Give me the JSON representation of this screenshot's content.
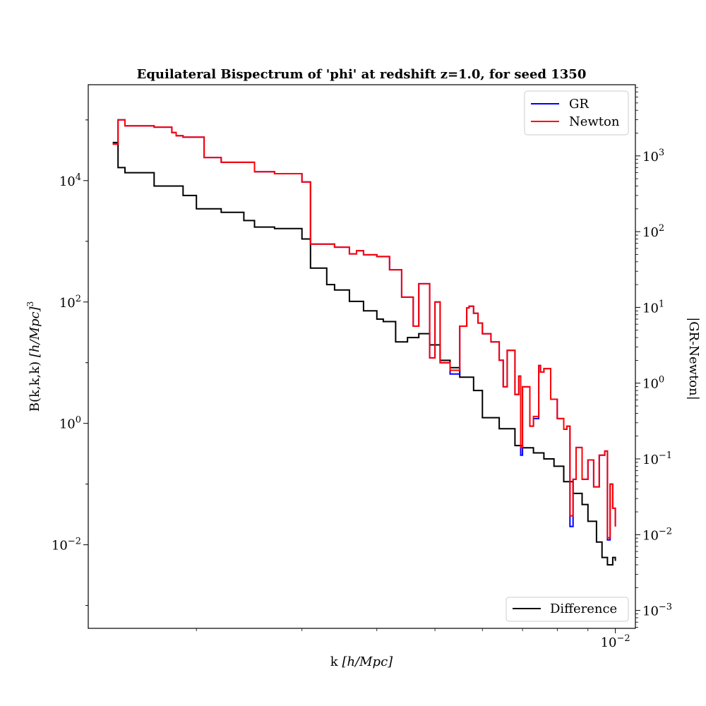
{
  "chart_data": {
    "type": "line",
    "title": "Equilateral Bispectrum of 'phi' at redshift z=1.0, for seed 1350",
    "xlabel_text": "k ",
    "xlabel_unit": "[h/Mpc]",
    "ylabel_text": "B(k,k,k) ",
    "ylabel_unit": "[h/Mpc]",
    "ylabel_exp": "3",
    "ylabel_right": "|GR-Newton|",
    "x_scale": "log",
    "y_scale": "log",
    "y_right_scale": "log",
    "xlim": [
      0.00132,
      0.0108
    ],
    "ylim": [
      0.00042,
      380000
    ],
    "y_right_lim": [
      0.00058,
      8700
    ],
    "grid": false,
    "legend_left_axis": "top-right",
    "legend_right_axis": "bottom-right",
    "x_tick_labels": [
      {
        "value": 0.01,
        "base": "10",
        "exp": "−2"
      }
    ],
    "y_tick_labels": [
      {
        "value": 0.01,
        "base": "10",
        "exp": "−2"
      },
      {
        "value": 1,
        "base": "10",
        "exp": "0"
      },
      {
        "value": 100,
        "base": "10",
        "exp": "2"
      },
      {
        "value": 10000,
        "base": "10",
        "exp": "4"
      }
    ],
    "y_right_tick_labels": [
      {
        "value": 0.001,
        "base": "10",
        "exp": "−3"
      },
      {
        "value": 0.01,
        "base": "10",
        "exp": "−2"
      },
      {
        "value": 0.1,
        "base": "10",
        "exp": "−1"
      },
      {
        "value": 1,
        "base": "10",
        "exp": "0"
      },
      {
        "value": 10,
        "base": "10",
        "exp": "1"
      },
      {
        "value": 100,
        "base": "10",
        "exp": "2"
      },
      {
        "value": 1000,
        "base": "10",
        "exp": "3"
      }
    ],
    "series": [
      {
        "name": "GR",
        "axis": "left",
        "color": "#0000ff",
        "x": [
          0.00145,
          0.00148,
          0.00152,
          0.0017,
          0.00182,
          0.00185,
          0.0019,
          0.00206,
          0.0022,
          0.0025,
          0.0027,
          0.003,
          0.0031,
          0.0034,
          0.0036,
          0.0037,
          0.0038,
          0.004,
          0.0042,
          0.0044,
          0.0046,
          0.0047,
          0.0049,
          0.005,
          0.0051,
          0.0053,
          0.0055,
          0.00565,
          0.0057,
          0.0058,
          0.0059,
          0.006,
          0.0062,
          0.0064,
          0.0065,
          0.0066,
          0.0068,
          0.0069,
          0.00695,
          0.007,
          0.0072,
          0.0073,
          0.00745,
          0.0075,
          0.0076,
          0.0078,
          0.008,
          0.0082,
          0.0083,
          0.0084,
          0.0085,
          0.0086,
          0.0088,
          0.009,
          0.0092,
          0.0094,
          0.0096,
          0.0097,
          0.0098,
          0.0099,
          0.01
        ],
        "y": [
          40000,
          100000,
          80000,
          76000,
          62000,
          55000,
          52000,
          24000,
          20000,
          14000,
          13000,
          9500,
          900,
          800,
          620,
          700,
          600,
          560,
          340,
          120,
          40,
          200,
          12,
          100,
          10,
          6.5,
          40,
          80,
          85,
          65,
          45,
          30,
          22,
          11,
          4,
          16,
          3,
          6,
          0.3,
          4,
          0.9,
          1.2,
          9,
          7,
          8,
          2.5,
          1.2,
          0.8,
          0.9,
          0.02,
          0.12,
          0.4,
          0.12,
          0.25,
          0.09,
          0.3,
          0.35,
          0.012,
          0.1,
          0.04,
          0.02
        ]
      },
      {
        "name": "Newton",
        "axis": "left",
        "color": "#ff0000",
        "x": [
          0.00145,
          0.00148,
          0.00152,
          0.0017,
          0.00182,
          0.00185,
          0.0019,
          0.00206,
          0.0022,
          0.0025,
          0.0027,
          0.003,
          0.0031,
          0.0034,
          0.0036,
          0.0037,
          0.0038,
          0.004,
          0.0042,
          0.0044,
          0.0046,
          0.0047,
          0.0049,
          0.005,
          0.0051,
          0.0053,
          0.0055,
          0.00565,
          0.0057,
          0.0058,
          0.0059,
          0.006,
          0.0062,
          0.0064,
          0.0065,
          0.0066,
          0.0068,
          0.0069,
          0.00695,
          0.007,
          0.0072,
          0.0073,
          0.00745,
          0.0075,
          0.0076,
          0.0078,
          0.008,
          0.0082,
          0.0083,
          0.0084,
          0.0085,
          0.0086,
          0.0088,
          0.009,
          0.0092,
          0.0094,
          0.0096,
          0.0097,
          0.0098,
          0.0099,
          0.01
        ],
        "y": [
          40000,
          100000,
          80000,
          76000,
          62000,
          55000,
          52000,
          24000,
          20000,
          14000,
          13000,
          9500,
          900,
          800,
          620,
          700,
          600,
          560,
          340,
          120,
          40,
          200,
          12,
          100,
          10,
          7.5,
          40,
          80,
          85,
          65,
          45,
          30,
          22,
          11,
          4,
          16,
          3,
          6,
          0.4,
          4,
          0.9,
          1.3,
          9,
          7,
          8,
          2.5,
          1.2,
          0.8,
          0.9,
          0.03,
          0.12,
          0.4,
          0.12,
          0.25,
          0.09,
          0.3,
          0.35,
          0.013,
          0.1,
          0.04,
          0.02
        ]
      },
      {
        "name": "Difference",
        "axis": "right",
        "color": "#000000",
        "x": [
          0.00145,
          0.00148,
          0.00152,
          0.0017,
          0.0019,
          0.002,
          0.0022,
          0.0024,
          0.0025,
          0.0027,
          0.003,
          0.0031,
          0.0033,
          0.0034,
          0.0036,
          0.0038,
          0.004,
          0.0041,
          0.0043,
          0.0045,
          0.0047,
          0.0049,
          0.0051,
          0.0053,
          0.0055,
          0.0058,
          0.006,
          0.0064,
          0.0068,
          0.007,
          0.0073,
          0.0076,
          0.0079,
          0.0082,
          0.0085,
          0.0088,
          0.009,
          0.0093,
          0.0095,
          0.0097,
          0.0099,
          0.01
        ],
        "y": [
          1500,
          700,
          600,
          400,
          300,
          200,
          180,
          140,
          115,
          110,
          80,
          33,
          20,
          17,
          12,
          9,
          7,
          6.5,
          3.5,
          4,
          4.5,
          3.2,
          2,
          1.6,
          1.2,
          0.8,
          0.35,
          0.25,
          0.15,
          0.14,
          0.12,
          0.1,
          0.08,
          0.05,
          0.035,
          0.025,
          0.015,
          0.008,
          0.005,
          0.004,
          0.005,
          0.0045
        ]
      }
    ]
  }
}
